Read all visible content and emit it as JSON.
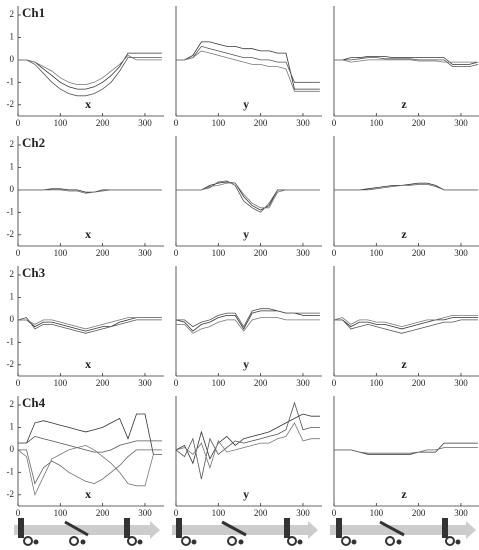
{
  "chart_data": [
    {
      "type": "line",
      "title": "Ch1",
      "xlabel": "x",
      "x": [
        0,
        20,
        40,
        60,
        80,
        100,
        120,
        140,
        160,
        180,
        200,
        220,
        240,
        260,
        280,
        300,
        320,
        340
      ],
      "xlim": [
        0,
        345
      ],
      "ylim": [
        -2.5,
        2.4
      ],
      "xticks": [
        0,
        100,
        200,
        300
      ],
      "yticks": [
        -2,
        -1,
        0,
        1,
        2
      ],
      "series": [
        {
          "color": "#333",
          "values": [
            0,
            0,
            -0.1,
            -0.4,
            -0.7,
            -1.0,
            -1.2,
            -1.3,
            -1.3,
            -1.2,
            -1.0,
            -0.7,
            -0.3,
            0.3,
            0.3,
            0.3,
            0.3,
            0.3
          ]
        },
        {
          "color": "#555",
          "values": [
            0,
            0,
            -0.2,
            -0.6,
            -1.0,
            -1.3,
            -1.5,
            -1.6,
            -1.6,
            -1.5,
            -1.3,
            -1.0,
            -0.5,
            0.1,
            0.1,
            0.1,
            0.1,
            0.1
          ]
        },
        {
          "color": "#777",
          "values": [
            0,
            0,
            -0.1,
            -0.3,
            -0.5,
            -0.8,
            -1.0,
            -1.1,
            -1.1,
            -1.0,
            -0.8,
            -0.5,
            -0.2,
            0.2,
            0,
            0,
            0,
            0
          ]
        }
      ]
    },
    {
      "type": "line",
      "xlabel": "y",
      "x": [
        0,
        20,
        40,
        60,
        80,
        100,
        120,
        140,
        160,
        180,
        200,
        220,
        240,
        260,
        280,
        300,
        320,
        340
      ],
      "xlim": [
        0,
        345
      ],
      "ylim": [
        -2.5,
        2.4
      ],
      "xticks": [
        0,
        100,
        200,
        300
      ],
      "series": [
        {
          "color": "#333",
          "values": [
            0,
            0,
            0.2,
            0.8,
            0.8,
            0.7,
            0.6,
            0.6,
            0.5,
            0.5,
            0.4,
            0.4,
            0.3,
            0.3,
            -1.3,
            -1.3,
            -1.3,
            -1.3
          ]
        },
        {
          "color": "#555",
          "values": [
            0,
            0,
            0.1,
            0.6,
            0.5,
            0.4,
            0.3,
            0.2,
            0.1,
            0.1,
            0,
            0,
            -0.1,
            -0.1,
            -1.0,
            -1.0,
            -1.0,
            -1.0
          ]
        },
        {
          "color": "#777",
          "values": [
            0,
            0,
            0.1,
            0.4,
            0.3,
            0.2,
            0.1,
            0,
            -0.1,
            -0.2,
            -0.2,
            -0.3,
            -0.3,
            -0.4,
            -1.4,
            -1.4,
            -1.4,
            -1.4
          ]
        }
      ]
    },
    {
      "type": "line",
      "xlabel": "z",
      "x": [
        0,
        20,
        40,
        60,
        80,
        100,
        120,
        140,
        160,
        180,
        200,
        220,
        240,
        260,
        280,
        300,
        320,
        340
      ],
      "xlim": [
        0,
        345
      ],
      "ylim": [
        -2.5,
        2.4
      ],
      "xticks": [
        0,
        100,
        200,
        300
      ],
      "series": [
        {
          "color": "#333",
          "values": [
            0,
            0,
            0.1,
            0.1,
            0.15,
            0.15,
            0.15,
            0.1,
            0.1,
            0.1,
            0.1,
            0.1,
            0.1,
            0.1,
            -0.2,
            -0.2,
            -0.2,
            -0.1
          ]
        },
        {
          "color": "#555",
          "values": [
            0,
            0,
            0,
            0.05,
            0.1,
            0.1,
            0.05,
            0.05,
            0.05,
            0.05,
            0,
            0,
            0,
            0,
            -0.3,
            -0.3,
            -0.3,
            -0.2
          ]
        },
        {
          "color": "#777",
          "values": [
            0,
            0,
            -0.1,
            -0.05,
            0,
            0,
            0,
            0,
            0,
            0,
            -0.05,
            -0.05,
            -0.05,
            -0.1,
            -0.1,
            -0.1,
            -0.1,
            -0.1
          ]
        }
      ]
    },
    {
      "type": "line",
      "title": "Ch2",
      "xlabel": "x",
      "x": [
        0,
        20,
        40,
        60,
        80,
        100,
        120,
        140,
        160,
        180,
        200,
        220,
        240,
        260,
        280,
        300,
        320,
        340
      ],
      "xlim": [
        0,
        345
      ],
      "ylim": [
        -2.5,
        2.4
      ],
      "xticks": [
        0,
        100,
        200,
        300
      ],
      "yticks": [
        -2,
        -1,
        0,
        1,
        2
      ],
      "series": [
        {
          "color": "#333",
          "values": [
            0,
            0,
            0,
            0,
            0.05,
            0.05,
            0,
            0,
            -0.1,
            -0.1,
            0,
            0,
            0,
            0,
            0,
            0,
            0,
            0
          ]
        },
        {
          "color": "#666",
          "values": [
            0,
            0,
            0,
            0,
            0,
            0,
            -0.05,
            -0.05,
            -0.15,
            -0.1,
            -0.05,
            0,
            0,
            0,
            0,
            0,
            0,
            0
          ]
        }
      ]
    },
    {
      "type": "line",
      "xlabel": "y",
      "x": [
        0,
        20,
        40,
        60,
        80,
        100,
        120,
        140,
        160,
        180,
        200,
        220,
        240,
        260,
        280,
        300,
        320,
        340
      ],
      "xlim": [
        0,
        345
      ],
      "ylim": [
        -2.5,
        2.4
      ],
      "xticks": [
        0,
        100,
        200,
        300
      ],
      "series": [
        {
          "color": "#333",
          "values": [
            0,
            0,
            0,
            0,
            0.2,
            0.3,
            0.35,
            0.3,
            -0.3,
            -0.7,
            -0.9,
            -0.7,
            0,
            0,
            0,
            0,
            0,
            0
          ]
        },
        {
          "color": "#555",
          "values": [
            0,
            0,
            0,
            0,
            0.1,
            0.35,
            0.4,
            0.2,
            -0.5,
            -0.8,
            -1.0,
            -0.6,
            0,
            0,
            0,
            0,
            0,
            0
          ]
        },
        {
          "color": "#777",
          "values": [
            0,
            0,
            0,
            0,
            0.15,
            0.2,
            0.3,
            0.3,
            -0.2,
            -0.6,
            -0.8,
            -0.8,
            -0.1,
            0,
            0,
            0,
            0,
            0
          ]
        }
      ]
    },
    {
      "type": "line",
      "xlabel": "z",
      "x": [
        0,
        20,
        40,
        60,
        80,
        100,
        120,
        140,
        160,
        180,
        200,
        220,
        240,
        260,
        280,
        300,
        320,
        340
      ],
      "xlim": [
        0,
        345
      ],
      "ylim": [
        -2.5,
        2.4
      ],
      "xticks": [
        0,
        100,
        200,
        300
      ],
      "series": [
        {
          "color": "#333",
          "values": [
            0,
            0,
            0,
            0,
            0.05,
            0.1,
            0.15,
            0.2,
            0.2,
            0.25,
            0.3,
            0.3,
            0.2,
            0,
            0,
            0,
            0,
            0
          ]
        },
        {
          "color": "#666",
          "values": [
            0,
            0,
            0,
            0,
            0,
            0.05,
            0.1,
            0.15,
            0.2,
            0.2,
            0.25,
            0.25,
            0.15,
            0,
            0,
            0,
            0,
            0
          ]
        }
      ]
    },
    {
      "type": "line",
      "title": "Ch3",
      "xlabel": "x",
      "x": [
        0,
        20,
        40,
        60,
        80,
        100,
        120,
        140,
        160,
        180,
        200,
        220,
        240,
        260,
        280,
        300,
        320,
        340
      ],
      "xlim": [
        0,
        345
      ],
      "ylim": [
        -2.5,
        2.4
      ],
      "xticks": [
        0,
        100,
        200,
        300
      ],
      "yticks": [
        -2,
        -1,
        0,
        1,
        2
      ],
      "series": [
        {
          "color": "#333",
          "values": [
            0,
            0,
            -0.3,
            -0.1,
            -0.1,
            -0.2,
            -0.3,
            -0.4,
            -0.5,
            -0.4,
            -0.3,
            -0.3,
            -0.1,
            0,
            0.1,
            0.1,
            0.1,
            0.1
          ]
        },
        {
          "color": "#555",
          "values": [
            0,
            0.1,
            -0.4,
            -0.2,
            -0.2,
            -0.3,
            -0.4,
            -0.5,
            -0.6,
            -0.5,
            -0.4,
            -0.3,
            -0.2,
            -0.1,
            0,
            0,
            0,
            0
          ]
        },
        {
          "color": "#777",
          "values": [
            0,
            0,
            -0.2,
            0,
            0,
            -0.1,
            -0.2,
            -0.3,
            -0.4,
            -0.3,
            -0.2,
            -0.1,
            0,
            0.1,
            0.1,
            0.1,
            0.1,
            0.1
          ]
        }
      ]
    },
    {
      "type": "line",
      "xlabel": "y",
      "x": [
        0,
        20,
        40,
        60,
        80,
        100,
        120,
        140,
        160,
        180,
        200,
        220,
        240,
        260,
        280,
        300,
        320,
        340
      ],
      "xlim": [
        0,
        345
      ],
      "ylim": [
        -2.5,
        2.4
      ],
      "xticks": [
        0,
        100,
        200,
        300
      ],
      "series": [
        {
          "color": "#333",
          "values": [
            0,
            -0.1,
            -0.5,
            -0.2,
            -0.1,
            0.1,
            0.2,
            0.2,
            -0.4,
            0.3,
            0.4,
            0.4,
            0.4,
            0.3,
            0.3,
            0.2,
            0.2,
            0.2
          ]
        },
        {
          "color": "#555",
          "values": [
            0,
            0,
            -0.3,
            -0.1,
            0,
            0.2,
            0.3,
            0.3,
            -0.3,
            0.4,
            0.5,
            0.5,
            0.4,
            0.3,
            0.3,
            0.3,
            0.3,
            0.3
          ]
        },
        {
          "color": "#777",
          "values": [
            -0.2,
            -0.2,
            -0.6,
            -0.4,
            -0.3,
            -0.1,
            0,
            0,
            -0.5,
            0,
            0.1,
            0.1,
            0.1,
            0,
            0,
            0,
            0,
            0
          ]
        }
      ]
    },
    {
      "type": "line",
      "xlabel": "z",
      "x": [
        0,
        20,
        40,
        60,
        80,
        100,
        120,
        140,
        160,
        180,
        200,
        220,
        240,
        260,
        280,
        300,
        320,
        340
      ],
      "xlim": [
        0,
        345
      ],
      "ylim": [
        -2.5,
        2.4
      ],
      "xticks": [
        0,
        100,
        200,
        300
      ],
      "series": [
        {
          "color": "#333",
          "values": [
            0,
            0,
            -0.3,
            -0.1,
            -0.1,
            -0.2,
            -0.2,
            -0.3,
            -0.4,
            -0.3,
            -0.2,
            -0.1,
            0,
            0,
            0.1,
            0.1,
            0.1,
            0.1
          ]
        },
        {
          "color": "#555",
          "values": [
            0,
            0,
            -0.4,
            -0.3,
            -0.2,
            -0.3,
            -0.4,
            -0.5,
            -0.6,
            -0.5,
            -0.4,
            -0.3,
            -0.2,
            -0.1,
            -0.1,
            0,
            0,
            0
          ]
        },
        {
          "color": "#777",
          "values": [
            0,
            0.1,
            -0.2,
            0,
            0,
            -0.1,
            -0.1,
            -0.2,
            -0.3,
            -0.2,
            -0.1,
            0,
            0,
            0.1,
            0.2,
            0.2,
            0.2,
            0.2
          ]
        }
      ]
    },
    {
      "type": "line",
      "title": "Ch4",
      "xlabel": "x",
      "x": [
        0,
        20,
        40,
        60,
        80,
        100,
        120,
        140,
        160,
        180,
        200,
        220,
        240,
        260,
        280,
        300,
        320,
        340
      ],
      "xlim": [
        0,
        345
      ],
      "ylim": [
        -2.5,
        2.4
      ],
      "xticks": [
        0,
        100,
        200,
        300
      ],
      "yticks": [
        -2,
        -1,
        0,
        1,
        2
      ],
      "series": [
        {
          "color": "#333",
          "values": [
            0.3,
            0.3,
            1.2,
            1.3,
            1.2,
            1.1,
            1.0,
            0.9,
            0.8,
            0.9,
            1.0,
            1.2,
            1.4,
            0.5,
            1.6,
            1.6,
            -0.2,
            -0.2
          ]
        },
        {
          "color": "#555",
          "values": [
            0.3,
            0.3,
            0.6,
            0.5,
            0.4,
            0.3,
            0.2,
            0.1,
            0,
            -0.1,
            -0.1,
            0,
            0.2,
            0.3,
            0.4,
            0.4,
            0.4,
            0.4
          ]
        },
        {
          "color": "#666",
          "values": [
            0,
            0,
            -1.5,
            -0.8,
            -0.5,
            -0.7,
            -1.0,
            -1.2,
            -1.4,
            -1.5,
            -1.3,
            -1.0,
            -0.7,
            -0.3,
            0,
            0,
            0,
            0
          ]
        },
        {
          "color": "#777",
          "values": [
            0,
            -0.3,
            -2.0,
            -1.2,
            -0.4,
            -0.2,
            0,
            0.1,
            0.2,
            0,
            -0.3,
            -0.6,
            -1.0,
            -1.5,
            -1.6,
            -1.6,
            -0.2,
            -0.2
          ]
        }
      ]
    },
    {
      "type": "line",
      "xlabel": "y",
      "x": [
        0,
        20,
        40,
        60,
        80,
        100,
        120,
        140,
        160,
        180,
        200,
        220,
        240,
        260,
        280,
        300,
        320,
        340
      ],
      "xlim": [
        0,
        345
      ],
      "ylim": [
        -2.5,
        2.4
      ],
      "xticks": [
        0,
        100,
        200,
        300
      ],
      "series": [
        {
          "color": "#333",
          "values": [
            0,
            0.2,
            -0.6,
            0.8,
            -0.4,
            0.3,
            0.6,
            0.2,
            0.5,
            0.6,
            0.7,
            0.8,
            1.0,
            1.2,
            1.4,
            1.6,
            1.5,
            1.5
          ]
        },
        {
          "color": "#555",
          "values": [
            0,
            -0.3,
            0.5,
            -1.3,
            0.5,
            -0.2,
            0.1,
            0.4,
            0.3,
            0.4,
            0.5,
            0.6,
            0.7,
            0.9,
            2.1,
            0.9,
            1.0,
            1.0
          ]
        },
        {
          "color": "#777",
          "values": [
            0,
            0.1,
            -0.2,
            0.3,
            -0.8,
            0.4,
            -0.1,
            0,
            0.1,
            0.2,
            0.3,
            0.3,
            0.5,
            0.6,
            1.2,
            0.4,
            0.5,
            0.5
          ]
        }
      ]
    },
    {
      "type": "line",
      "xlabel": "z",
      "x": [
        0,
        20,
        40,
        60,
        80,
        100,
        120,
        140,
        160,
        180,
        200,
        220,
        240,
        260,
        280,
        300,
        320,
        340
      ],
      "xlim": [
        0,
        345
      ],
      "ylim": [
        -2.5,
        2.4
      ],
      "xticks": [
        0,
        100,
        200,
        300
      ],
      "series": [
        {
          "color": "#333",
          "values": [
            0,
            0,
            0,
            -0.1,
            -0.2,
            -0.2,
            -0.2,
            -0.2,
            -0.2,
            -0.2,
            -0.1,
            -0.1,
            -0.1,
            0.3,
            0.3,
            0.3,
            0.3,
            0.3
          ]
        },
        {
          "color": "#666",
          "values": [
            0,
            0,
            0,
            -0.1,
            -0.15,
            -0.15,
            -0.15,
            -0.15,
            -0.15,
            -0.15,
            -0.1,
            0,
            0,
            0.1,
            0.1,
            0.1,
            0.1,
            0.1
          ]
        }
      ]
    }
  ]
}
